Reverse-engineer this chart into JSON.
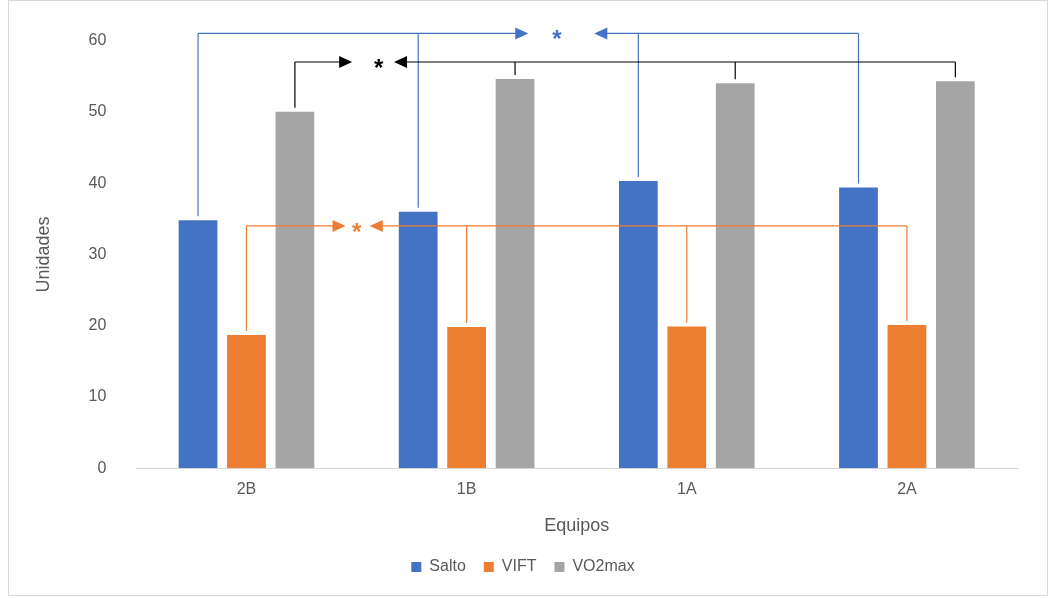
{
  "chart_data": {
    "type": "bar",
    "xlabel": "Equipos",
    "ylabel": "Unidades",
    "categories": [
      "2B",
      "1B",
      "1A",
      "2A"
    ],
    "series": [
      {
        "name": "Salto",
        "color": "#4472c4",
        "values": [
          34.8,
          36.0,
          40.3,
          39.4
        ]
      },
      {
        "name": "VIFT",
        "color": "#ed7d31",
        "values": [
          18.7,
          19.8,
          19.9,
          20.1
        ]
      },
      {
        "name": "VO2max",
        "color": "#a5a5a5",
        "values": [
          50.0,
          54.6,
          54.0,
          54.3
        ]
      }
    ],
    "ylim": [
      0,
      60
    ],
    "yticks": [
      0,
      10,
      20,
      30,
      40,
      50,
      60
    ],
    "grid": false,
    "legend": "bottom",
    "annotations": [
      "*",
      "*",
      "*"
    ]
  }
}
